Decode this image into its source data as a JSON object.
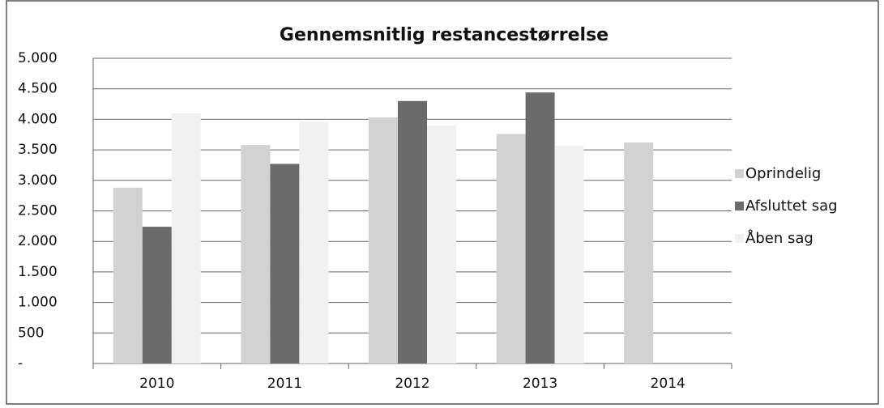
{
  "chart_data": {
    "type": "bar",
    "title": "Gennemsnitlig restancestørrelse",
    "categories": [
      "2010",
      "2011",
      "2012",
      "2013",
      "2014"
    ],
    "series": [
      {
        "name": "Oprindelig",
        "color": "#d2d2d2",
        "values": [
          2880,
          3580,
          4030,
          3760,
          3620
        ]
      },
      {
        "name": "Afsluttet sag",
        "color": "#6b6b6b",
        "values": [
          2240,
          3270,
          4300,
          4440,
          null
        ]
      },
      {
        "name": "Åben sag",
        "color": "#f1f1f1",
        "values": [
          4100,
          3960,
          3900,
          3570,
          null
        ]
      }
    ],
    "ylim": [
      0,
      5000
    ],
    "yticks": [
      {
        "value": 0,
        "label": "-"
      },
      500,
      {
        "value": 1000,
        "label": "1.000"
      },
      {
        "value": 1500,
        "label": "1.500"
      },
      {
        "value": 2000,
        "label": "2.000"
      },
      {
        "value": 2500,
        "label": "2.500"
      },
      {
        "value": 3000,
        "label": "3.000"
      },
      {
        "value": 3500,
        "label": "3.500"
      },
      {
        "value": 4000,
        "label": "4.000"
      },
      {
        "value": 4500,
        "label": "4.500"
      },
      {
        "value": 5000,
        "label": "5.000"
      }
    ],
    "grid": true,
    "legend": "right"
  }
}
